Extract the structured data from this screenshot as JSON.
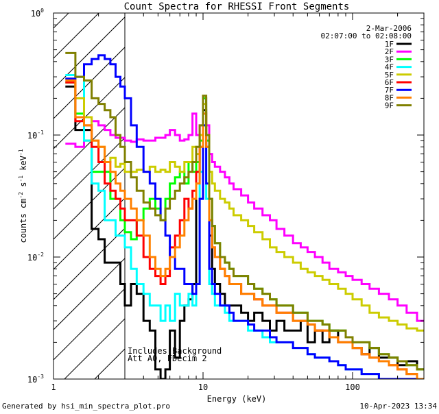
{
  "chart_data": {
    "type": "line",
    "title": "Count Spectra for RHESSI Front Segments",
    "xlabel": "Energy (keV)",
    "ylabel_parts": {
      "a": "counts cm",
      "b": "-2",
      "c": " s",
      "d": "-1",
      "e": " keV",
      "f": "-1"
    },
    "xscale": "log",
    "yscale": "log",
    "xlim": [
      1,
      300
    ],
    "ylim": [
      0.001,
      1
    ],
    "x_ticks": [
      {
        "value": 1,
        "label": "1"
      },
      {
        "value": 10,
        "label": "10"
      },
      {
        "value": 100,
        "label": "100"
      }
    ],
    "y_ticks": [
      {
        "value": 0.001,
        "base": "10",
        "exp": "-3"
      },
      {
        "value": 0.01,
        "base": "10",
        "exp": "-2"
      },
      {
        "value": 0.1,
        "base": "10",
        "exp": "-1"
      },
      {
        "value": 1,
        "base": "10",
        "exp": "0"
      }
    ],
    "shaded_region": {
      "x_min": 1,
      "x_max": 3,
      "pattern": "hatched"
    },
    "legend_header": {
      "date": "2-Mar-2006",
      "time_range": "02:07:00 to 02:08:00"
    },
    "annotations": [
      "Includes Background",
      "Att A0, FDecim 2"
    ],
    "footer_left": "Generated by hsi_min_spectra_plot.pro",
    "footer_right": "10-Apr-2023 13:34",
    "energy_edges": [
      1.2,
      1.4,
      1.6,
      1.8,
      2.0,
      2.2,
      2.4,
      2.6,
      2.8,
      3.0,
      3.3,
      3.6,
      4.0,
      4.4,
      4.8,
      5.2,
      5.6,
      6.0,
      6.5,
      7.0,
      7.5,
      8.0,
      8.5,
      9.0,
      9.5,
      10.0,
      10.5,
      11.0,
      11.5,
      12.0,
      13,
      14,
      15,
      16,
      18,
      20,
      22,
      25,
      28,
      31,
      35,
      40,
      45,
      50,
      56,
      63,
      70,
      80,
      90,
      100,
      115,
      130,
      150,
      175,
      200,
      230,
      270,
      300
    ],
    "series": [
      {
        "name": "1F",
        "color": "#000000",
        "values": [
          0.25,
          0.11,
          0.11,
          0.017,
          0.014,
          0.009,
          0.009,
          0.009,
          0.006,
          0.004,
          0.006,
          0.005,
          0.003,
          0.0025,
          0.0012,
          0.001,
          0.0012,
          0.0025,
          0.0015,
          0.003,
          0.004,
          0.0045,
          0.006,
          0.05,
          0.1,
          0.16,
          0.1,
          0.015,
          0.008,
          0.006,
          0.005,
          0.004,
          0.004,
          0.004,
          0.0035,
          0.003,
          0.0035,
          0.003,
          0.0025,
          0.003,
          0.0025,
          0.0025,
          0.003,
          0.002,
          0.0025,
          0.002,
          0.0025,
          0.002,
          0.002,
          0.0018,
          0.0016,
          0.0018,
          0.0015,
          0.0015,
          0.0013,
          0.0014,
          0.0012
        ]
      },
      {
        "name": "2F",
        "color": "#ff00ff",
        "values": [
          0.085,
          0.08,
          0.14,
          0.13,
          0.12,
          0.11,
          0.1,
          0.095,
          0.095,
          0.09,
          0.088,
          0.092,
          0.09,
          0.09,
          0.095,
          0.095,
          0.1,
          0.11,
          0.1,
          0.09,
          0.092,
          0.1,
          0.15,
          0.1,
          0.12,
          0.2,
          0.12,
          0.07,
          0.06,
          0.055,
          0.05,
          0.045,
          0.04,
          0.036,
          0.032,
          0.028,
          0.025,
          0.022,
          0.02,
          0.017,
          0.015,
          0.013,
          0.012,
          0.011,
          0.01,
          0.009,
          0.008,
          0.0075,
          0.007,
          0.0065,
          0.006,
          0.0055,
          0.005,
          0.0045,
          0.004,
          0.0035,
          0.003
        ]
      },
      {
        "name": "3F",
        "color": "#00ff00",
        "values": [
          0.27,
          0.15,
          0.09,
          0.05,
          0.05,
          0.05,
          0.03,
          0.03,
          0.02,
          0.016,
          0.014,
          0.02,
          0.025,
          0.03,
          0.025,
          0.02,
          0.03,
          0.04,
          0.045,
          0.05,
          0.04,
          0.06,
          0.05,
          0.06,
          0.09,
          0.2,
          0.09,
          0.03,
          0.018,
          0.013,
          0.01,
          0.009,
          0.008,
          0.007,
          0.007,
          0.006,
          0.0055,
          0.005,
          0.0045,
          0.004,
          0.004,
          0.0035,
          0.0035,
          0.003,
          0.003,
          0.0028,
          0.0025,
          0.0025,
          0.0022,
          0.002,
          0.002,
          0.0018,
          0.0016,
          0.0015,
          0.0014,
          0.0013,
          0.0012
        ]
      },
      {
        "name": "4F",
        "color": "#00ffff",
        "values": [
          0.31,
          0.3,
          0.09,
          0.04,
          0.035,
          0.02,
          0.02,
          0.015,
          0.015,
          0.012,
          0.008,
          0.006,
          0.005,
          0.004,
          0.004,
          0.003,
          0.004,
          0.003,
          0.005,
          0.004,
          0.004,
          0.005,
          0.004,
          0.006,
          0.05,
          0.12,
          0.03,
          0.006,
          0.005,
          0.004,
          0.004,
          0.0035,
          0.003,
          0.003,
          0.003,
          0.0025,
          0.0025,
          0.0022,
          0.002,
          0.002,
          0.002,
          0.0018,
          0.0018,
          0.0016,
          0.0015,
          0.0015,
          0.0014,
          0.0013,
          0.0012,
          0.0012,
          0.0011,
          0.0011,
          0.001,
          0.001,
          0.001,
          0.001,
          0.001
        ]
      },
      {
        "name": "5F",
        "color": "#cccc00",
        "values": [
          0.29,
          0.2,
          0.14,
          0.09,
          0.08,
          0.06,
          0.065,
          0.055,
          0.058,
          0.05,
          0.05,
          0.052,
          0.05,
          0.055,
          0.05,
          0.052,
          0.05,
          0.06,
          0.055,
          0.05,
          0.06,
          0.06,
          0.08,
          0.07,
          0.1,
          0.18,
          0.1,
          0.05,
          0.04,
          0.035,
          0.03,
          0.028,
          0.025,
          0.022,
          0.02,
          0.018,
          0.016,
          0.014,
          0.012,
          0.011,
          0.01,
          0.009,
          0.008,
          0.0075,
          0.007,
          0.0065,
          0.006,
          0.0055,
          0.005,
          0.0045,
          0.004,
          0.0035,
          0.0032,
          0.003,
          0.0028,
          0.0026,
          0.0025
        ]
      },
      {
        "name": "6F",
        "color": "#ff0000",
        "values": [
          0.27,
          0.13,
          0.12,
          0.08,
          0.06,
          0.04,
          0.035,
          0.03,
          0.025,
          0.02,
          0.02,
          0.015,
          0.01,
          0.008,
          0.007,
          0.006,
          0.007,
          0.012,
          0.015,
          0.02,
          0.03,
          0.025,
          0.035,
          0.05,
          0.08,
          0.15,
          0.08,
          0.02,
          0.012,
          0.01,
          0.008,
          0.007,
          0.006,
          0.006,
          0.005,
          0.005,
          0.0045,
          0.004,
          0.004,
          0.0035,
          0.0035,
          0.003,
          0.003,
          0.0028,
          0.0025,
          0.0025,
          0.0022,
          0.002,
          0.002,
          0.0018,
          0.0016,
          0.0015,
          0.0014,
          0.0013,
          0.0012,
          0.0011,
          0.001
        ]
      },
      {
        "name": "7F",
        "color": "#0000ff",
        "values": [
          0.29,
          0.3,
          0.38,
          0.42,
          0.45,
          0.42,
          0.38,
          0.3,
          0.25,
          0.2,
          0.12,
          0.08,
          0.05,
          0.04,
          0.03,
          0.02,
          0.015,
          0.01,
          0.008,
          0.008,
          0.006,
          0.006,
          0.005,
          0.006,
          0.03,
          0.12,
          0.04,
          0.008,
          0.006,
          0.005,
          0.004,
          0.004,
          0.0035,
          0.003,
          0.003,
          0.0028,
          0.0025,
          0.0025,
          0.0022,
          0.002,
          0.002,
          0.0018,
          0.0018,
          0.0016,
          0.0015,
          0.0015,
          0.0014,
          0.0013,
          0.0012,
          0.0012,
          0.0011,
          0.0011,
          0.001,
          0.001,
          0.001,
          0.001,
          0.001
        ]
      },
      {
        "name": "8F",
        "color": "#ff8000",
        "values": [
          0.28,
          0.14,
          0.12,
          0.09,
          0.08,
          0.06,
          0.05,
          0.04,
          0.035,
          0.03,
          0.025,
          0.02,
          0.015,
          0.01,
          0.008,
          0.007,
          0.008,
          0.01,
          0.012,
          0.015,
          0.02,
          0.025,
          0.03,
          0.04,
          0.08,
          0.15,
          0.08,
          0.02,
          0.012,
          0.01,
          0.008,
          0.007,
          0.006,
          0.006,
          0.005,
          0.005,
          0.0045,
          0.004,
          0.004,
          0.0035,
          0.0035,
          0.003,
          0.003,
          0.0028,
          0.0025,
          0.0025,
          0.0022,
          0.002,
          0.002,
          0.0018,
          0.0016,
          0.0015,
          0.0014,
          0.0013,
          0.0012,
          0.0011,
          0.001
        ]
      },
      {
        "name": "9F",
        "color": "#808000",
        "values": [
          0.47,
          0.3,
          0.28,
          0.2,
          0.18,
          0.16,
          0.14,
          0.1,
          0.08,
          0.06,
          0.045,
          0.035,
          0.028,
          0.025,
          0.022,
          0.02,
          0.025,
          0.03,
          0.035,
          0.04,
          0.045,
          0.05,
          0.06,
          0.08,
          0.12,
          0.21,
          0.1,
          0.03,
          0.018,
          0.013,
          0.01,
          0.009,
          0.008,
          0.007,
          0.007,
          0.006,
          0.0055,
          0.005,
          0.0045,
          0.004,
          0.004,
          0.0035,
          0.0035,
          0.003,
          0.003,
          0.0028,
          0.0025,
          0.0025,
          0.0022,
          0.002,
          0.002,
          0.0018,
          0.0016,
          0.0015,
          0.0014,
          0.0013,
          0.0012
        ]
      }
    ]
  }
}
